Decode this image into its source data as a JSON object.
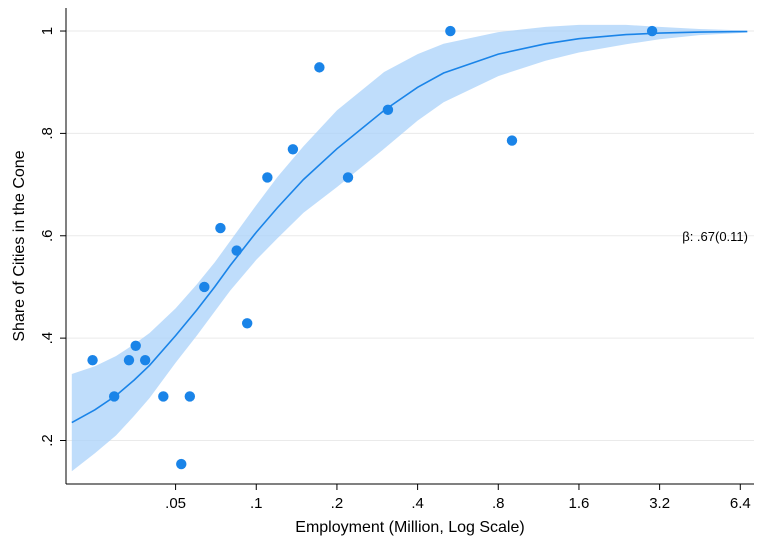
{
  "chart_data": {
    "type": "scatter",
    "title": "",
    "xlabel": "Employment (Million, Log Scale)",
    "ylabel": "Share of Cities in the Cone",
    "x_scale": "log2",
    "xlim": [
      0.0195,
      7.2
    ],
    "ylim": [
      0.115,
      1.045
    ],
    "x_ticks": [
      {
        "value": 0.05,
        "label": ".05"
      },
      {
        "value": 0.1,
        "label": ".1"
      },
      {
        "value": 0.2,
        "label": ".2"
      },
      {
        "value": 0.4,
        "label": ".4"
      },
      {
        "value": 0.8,
        "label": ".8"
      },
      {
        "value": 1.6,
        "label": "1.6"
      },
      {
        "value": 3.2,
        "label": "3.2"
      },
      {
        "value": 6.4,
        "label": "6.4"
      }
    ],
    "y_ticks": [
      {
        "value": 0.2,
        "label": ".2"
      },
      {
        "value": 0.4,
        "label": ".4"
      },
      {
        "value": 0.6,
        "label": ".6"
      },
      {
        "value": 0.8,
        "label": ".8"
      },
      {
        "value": 1.0,
        "label": "1"
      }
    ],
    "grid": "horizontal",
    "annotation": {
      "text": "β: .67(0.11)",
      "x": 6.4,
      "y": 0.6
    },
    "colors": {
      "points": "#1a84e8",
      "fit_line": "#1a84e8",
      "ci_band": "#a9d2fa"
    },
    "points": [
      {
        "x": 0.0245,
        "y": 0.357
      },
      {
        "x": 0.0295,
        "y": 0.286
      },
      {
        "x": 0.0335,
        "y": 0.357
      },
      {
        "x": 0.0355,
        "y": 0.385
      },
      {
        "x": 0.0385,
        "y": 0.357
      },
      {
        "x": 0.045,
        "y": 0.286
      },
      {
        "x": 0.0525,
        "y": 0.154
      },
      {
        "x": 0.0565,
        "y": 0.286
      },
      {
        "x": 0.064,
        "y": 0.5
      },
      {
        "x": 0.0735,
        "y": 0.615
      },
      {
        "x": 0.0845,
        "y": 0.571
      },
      {
        "x": 0.0925,
        "y": 0.429
      },
      {
        "x": 0.11,
        "y": 0.714
      },
      {
        "x": 0.137,
        "y": 0.769
      },
      {
        "x": 0.172,
        "y": 0.929
      },
      {
        "x": 0.22,
        "y": 0.714
      },
      {
        "x": 0.31,
        "y": 0.846
      },
      {
        "x": 0.53,
        "y": 1.0
      },
      {
        "x": 0.9,
        "y": 0.786
      },
      {
        "x": 3.0,
        "y": 1.0
      }
    ],
    "fit_line": [
      {
        "x": 0.0205,
        "y": 0.235
      },
      {
        "x": 0.025,
        "y": 0.26
      },
      {
        "x": 0.03,
        "y": 0.288
      },
      {
        "x": 0.035,
        "y": 0.318
      },
      {
        "x": 0.04,
        "y": 0.347
      },
      {
        "x": 0.05,
        "y": 0.405
      },
      {
        "x": 0.06,
        "y": 0.455
      },
      {
        "x": 0.07,
        "y": 0.5
      },
      {
        "x": 0.08,
        "y": 0.542
      },
      {
        "x": 0.1,
        "y": 0.607
      },
      {
        "x": 0.12,
        "y": 0.655
      },
      {
        "x": 0.15,
        "y": 0.71
      },
      {
        "x": 0.2,
        "y": 0.77
      },
      {
        "x": 0.3,
        "y": 0.845
      },
      {
        "x": 0.4,
        "y": 0.89
      },
      {
        "x": 0.5,
        "y": 0.918
      },
      {
        "x": 0.8,
        "y": 0.955
      },
      {
        "x": 1.2,
        "y": 0.975
      },
      {
        "x": 1.6,
        "y": 0.985
      },
      {
        "x": 2.4,
        "y": 0.993
      },
      {
        "x": 3.2,
        "y": 0.996
      },
      {
        "x": 4.5,
        "y": 0.998
      },
      {
        "x": 6.8,
        "y": 0.999
      }
    ],
    "ci_upper": [
      {
        "x": 0.0205,
        "y": 0.33
      },
      {
        "x": 0.025,
        "y": 0.345
      },
      {
        "x": 0.03,
        "y": 0.365
      },
      {
        "x": 0.035,
        "y": 0.388
      },
      {
        "x": 0.04,
        "y": 0.41
      },
      {
        "x": 0.05,
        "y": 0.458
      },
      {
        "x": 0.06,
        "y": 0.505
      },
      {
        "x": 0.07,
        "y": 0.548
      },
      {
        "x": 0.08,
        "y": 0.59
      },
      {
        "x": 0.1,
        "y": 0.66
      },
      {
        "x": 0.12,
        "y": 0.715
      },
      {
        "x": 0.15,
        "y": 0.775
      },
      {
        "x": 0.2,
        "y": 0.845
      },
      {
        "x": 0.3,
        "y": 0.92
      },
      {
        "x": 0.4,
        "y": 0.955
      },
      {
        "x": 0.5,
        "y": 0.975
      },
      {
        "x": 0.8,
        "y": 0.998
      },
      {
        "x": 1.2,
        "y": 1.008
      },
      {
        "x": 1.6,
        "y": 1.012
      },
      {
        "x": 2.4,
        "y": 1.012
      },
      {
        "x": 3.2,
        "y": 1.008
      },
      {
        "x": 4.5,
        "y": 1.004
      },
      {
        "x": 6.8,
        "y": 1.001
      }
    ],
    "ci_lower": [
      {
        "x": 0.0205,
        "y": 0.14
      },
      {
        "x": 0.025,
        "y": 0.175
      },
      {
        "x": 0.03,
        "y": 0.21
      },
      {
        "x": 0.035,
        "y": 0.248
      },
      {
        "x": 0.04,
        "y": 0.283
      },
      {
        "x": 0.05,
        "y": 0.352
      },
      {
        "x": 0.06,
        "y": 0.405
      },
      {
        "x": 0.07,
        "y": 0.452
      },
      {
        "x": 0.08,
        "y": 0.493
      },
      {
        "x": 0.1,
        "y": 0.553
      },
      {
        "x": 0.12,
        "y": 0.595
      },
      {
        "x": 0.15,
        "y": 0.645
      },
      {
        "x": 0.2,
        "y": 0.695
      },
      {
        "x": 0.3,
        "y": 0.77
      },
      {
        "x": 0.4,
        "y": 0.825
      },
      {
        "x": 0.5,
        "y": 0.861
      },
      {
        "x": 0.8,
        "y": 0.912
      },
      {
        "x": 1.2,
        "y": 0.942
      },
      {
        "x": 1.6,
        "y": 0.958
      },
      {
        "x": 2.4,
        "y": 0.974
      },
      {
        "x": 3.2,
        "y": 0.984
      },
      {
        "x": 4.5,
        "y": 0.992
      },
      {
        "x": 6.8,
        "y": 0.997
      }
    ]
  }
}
